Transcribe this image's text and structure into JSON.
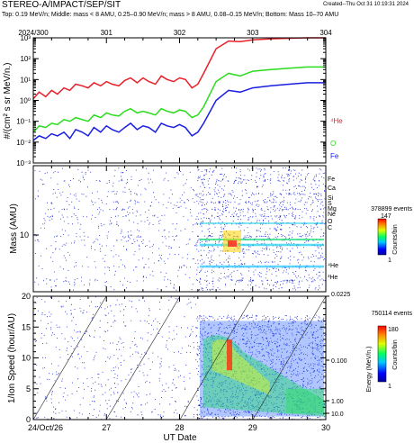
{
  "header": {
    "title": "STEREO-A/IMPACT/SEP/SIT",
    "created": "Created--Thu Oct 31 10:19:31 2024",
    "subtitle": "Top: 0.19 MeV/n; Middle: mass < 8 AMU, 0.25–0.90 MeV/n; mass > 8 AMU, 0.08–0.15 MeV/n; Bottom: Mass 10–70 AMU"
  },
  "colors": {
    "he": "#e8202a",
    "o": "#2bdc1c",
    "fe": "#1a1ee0"
  },
  "chart_data": [
    {
      "type": "line",
      "xlabel": "",
      "ylabel": "#/(cm² s sr MeV/n.)",
      "scale": "log",
      "ylim": [
        0.001,
        1000
      ],
      "yticks": [
        "10⁻³",
        "10⁻²",
        "10⁻¹",
        "10⁰",
        "10¹",
        "10²",
        "10³"
      ],
      "top_ticks": [
        "2024/300",
        "301",
        "302",
        "303",
        "304"
      ],
      "xlim": [
        300,
        304
      ],
      "series": [
        {
          "name": "⁴He",
          "color": "#e8202a",
          "x": [
            300,
            300.08,
            300.17,
            300.25,
            300.33,
            300.42,
            300.5,
            300.58,
            300.67,
            300.75,
            300.83,
            300.92,
            301,
            301.08,
            301.17,
            301.25,
            301.33,
            301.42,
            301.5,
            301.58,
            301.67,
            301.75,
            301.83,
            301.92,
            302,
            302.08,
            302.17,
            302.25,
            302.33,
            302.5,
            302.67,
            302.83,
            303,
            303.25,
            303.5,
            303.75,
            304
          ],
          "y": [
            1.2,
            2.5,
            1.5,
            3,
            2,
            4,
            3,
            6,
            5,
            4,
            7,
            5,
            8,
            6,
            5,
            9,
            12,
            7,
            12,
            8,
            6,
            15,
            10,
            8,
            12,
            10,
            4,
            6,
            20,
            300,
            700,
            650,
            800,
            900,
            950,
            1000,
            1000
          ]
        },
        {
          "name": "O",
          "color": "#2bdc1c",
          "x": [
            300,
            300.08,
            300.17,
            300.25,
            300.33,
            300.42,
            300.5,
            300.58,
            300.67,
            300.75,
            300.83,
            300.92,
            301,
            301.08,
            301.17,
            301.25,
            301.33,
            301.42,
            301.5,
            301.58,
            301.67,
            301.75,
            301.83,
            301.92,
            302,
            302.08,
            302.17,
            302.25,
            302.33,
            302.5,
            302.67,
            302.83,
            303,
            303.25,
            303.5,
            303.75,
            304
          ],
          "y": [
            0.03,
            0.06,
            0.05,
            0.08,
            0.07,
            0.12,
            0.1,
            0.15,
            0.12,
            0.1,
            0.2,
            0.15,
            0.25,
            0.2,
            0.18,
            0.3,
            0.4,
            0.25,
            0.3,
            0.25,
            0.2,
            0.4,
            0.3,
            0.25,
            0.35,
            0.3,
            0.15,
            0.2,
            0.5,
            8,
            20,
            15,
            25,
            30,
            35,
            40,
            40
          ]
        },
        {
          "name": "Fe",
          "color": "#1a1ee0",
          "x": [
            300,
            300.08,
            300.17,
            300.25,
            300.33,
            300.42,
            300.5,
            300.58,
            300.67,
            300.75,
            300.83,
            300.92,
            301,
            301.08,
            301.17,
            301.25,
            301.33,
            301.42,
            301.5,
            301.58,
            301.67,
            301.75,
            301.83,
            301.92,
            302,
            302.08,
            302.17,
            302.25,
            302.33,
            302.5,
            302.67,
            302.83,
            303,
            303.25,
            303.5,
            303.75,
            304
          ],
          "y": [
            0.012,
            0.02,
            0.015,
            0.025,
            0.02,
            0.03,
            0.015,
            0.04,
            0.03,
            0.02,
            0.05,
            0.03,
            0.06,
            0.04,
            0.03,
            0.05,
            0.08,
            0.04,
            0.06,
            0.05,
            0.03,
            0.08,
            0.06,
            0.05,
            0.07,
            0.05,
            0.02,
            0.03,
            0.08,
            1,
            3,
            2.5,
            4,
            5,
            6,
            7,
            7
          ]
        }
      ]
    },
    {
      "type": "heatmap",
      "ylabel": "Mass (AMU)",
      "ytick_label": "10",
      "events": "378899 events",
      "colorbar": {
        "label": "Counts/bin",
        "max": "147",
        "min": "1"
      },
      "species_labels": [
        "Fe",
        "Ca",
        "Si",
        "S",
        "Mg",
        "Ne",
        "O",
        "C",
        "⁴He",
        "³He"
      ]
    },
    {
      "type": "heatmap",
      "xlabel": "UT Date",
      "ylabel": "1/Ion Speed (hour/AU)",
      "ylim": [
        0,
        20
      ],
      "yticks": [
        "0",
        "5",
        "10",
        "15",
        "20"
      ],
      "xticks": [
        "24/Oct/26",
        "27",
        "28",
        "29",
        "30"
      ],
      "events": "750114 events",
      "colorbar": {
        "label": "Counts/bin",
        "max": "180",
        "min": "1"
      },
      "energy_axis": {
        "label": "Energy (MeV/n.)",
        "ticks": [
          "0.0225",
          "0.100",
          "1.00",
          "10.0"
        ]
      }
    }
  ]
}
